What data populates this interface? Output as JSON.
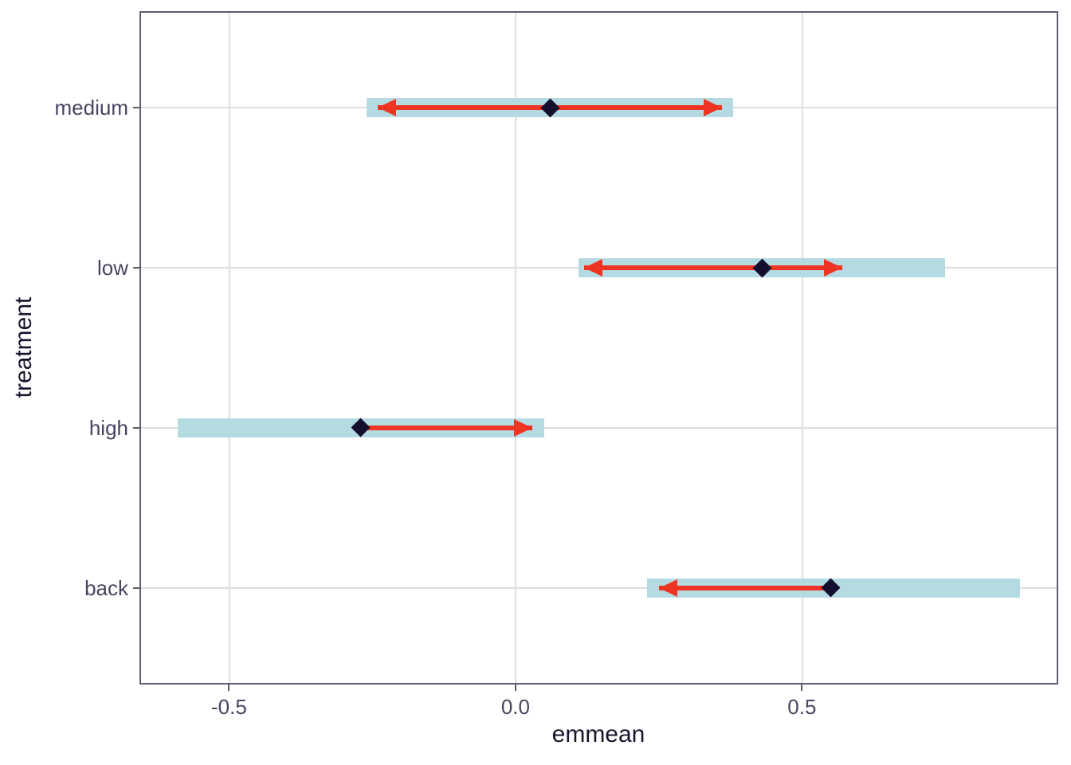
{
  "chart_data": {
    "type": "interval",
    "variant": "emmeans-plot-with-comparison-arrows",
    "title": "",
    "xlabel": "emmean",
    "ylabel": "treatment",
    "grid": true,
    "legend": null,
    "x_ticks": [
      {
        "value": -0.5,
        "label": "-0.5"
      },
      {
        "value": 0.0,
        "label": "0.0"
      },
      {
        "value": 0.5,
        "label": "0.5"
      }
    ],
    "xlim": [
      -0.655,
      0.946
    ],
    "ylim_positions": [
      0.4,
      4.6
    ],
    "categories_top_to_bottom": [
      "medium",
      "low",
      "high",
      "back"
    ],
    "rows": [
      {
        "treatment": "medium",
        "position": 4,
        "emmean": 0.06,
        "ci_lower": -0.26,
        "ci_upper": 0.38,
        "arrow_left": -0.24,
        "arrow_right": 0.36
      },
      {
        "treatment": "low",
        "position": 3,
        "emmean": 0.43,
        "ci_lower": 0.11,
        "ci_upper": 0.75,
        "arrow_left": 0.12,
        "arrow_right": 0.57
      },
      {
        "treatment": "high",
        "position": 2,
        "emmean": -0.27,
        "ci_lower": -0.59,
        "ci_upper": 0.05,
        "arrow_left": null,
        "arrow_right": 0.03
      },
      {
        "treatment": "back",
        "position": 1,
        "emmean": 0.55,
        "ci_lower": 0.23,
        "ci_upper": 0.88,
        "arrow_left": 0.25,
        "arrow_right": null
      }
    ],
    "colors": {
      "ci_bar": "#b5dbe2",
      "arrow": "#ee3422",
      "point": "#140f2e",
      "grid_line": "#dddde2",
      "panel_border": "#5d5a72",
      "tick_text": "#474560",
      "title_text": "#16152e",
      "background": "#ffffff"
    }
  }
}
